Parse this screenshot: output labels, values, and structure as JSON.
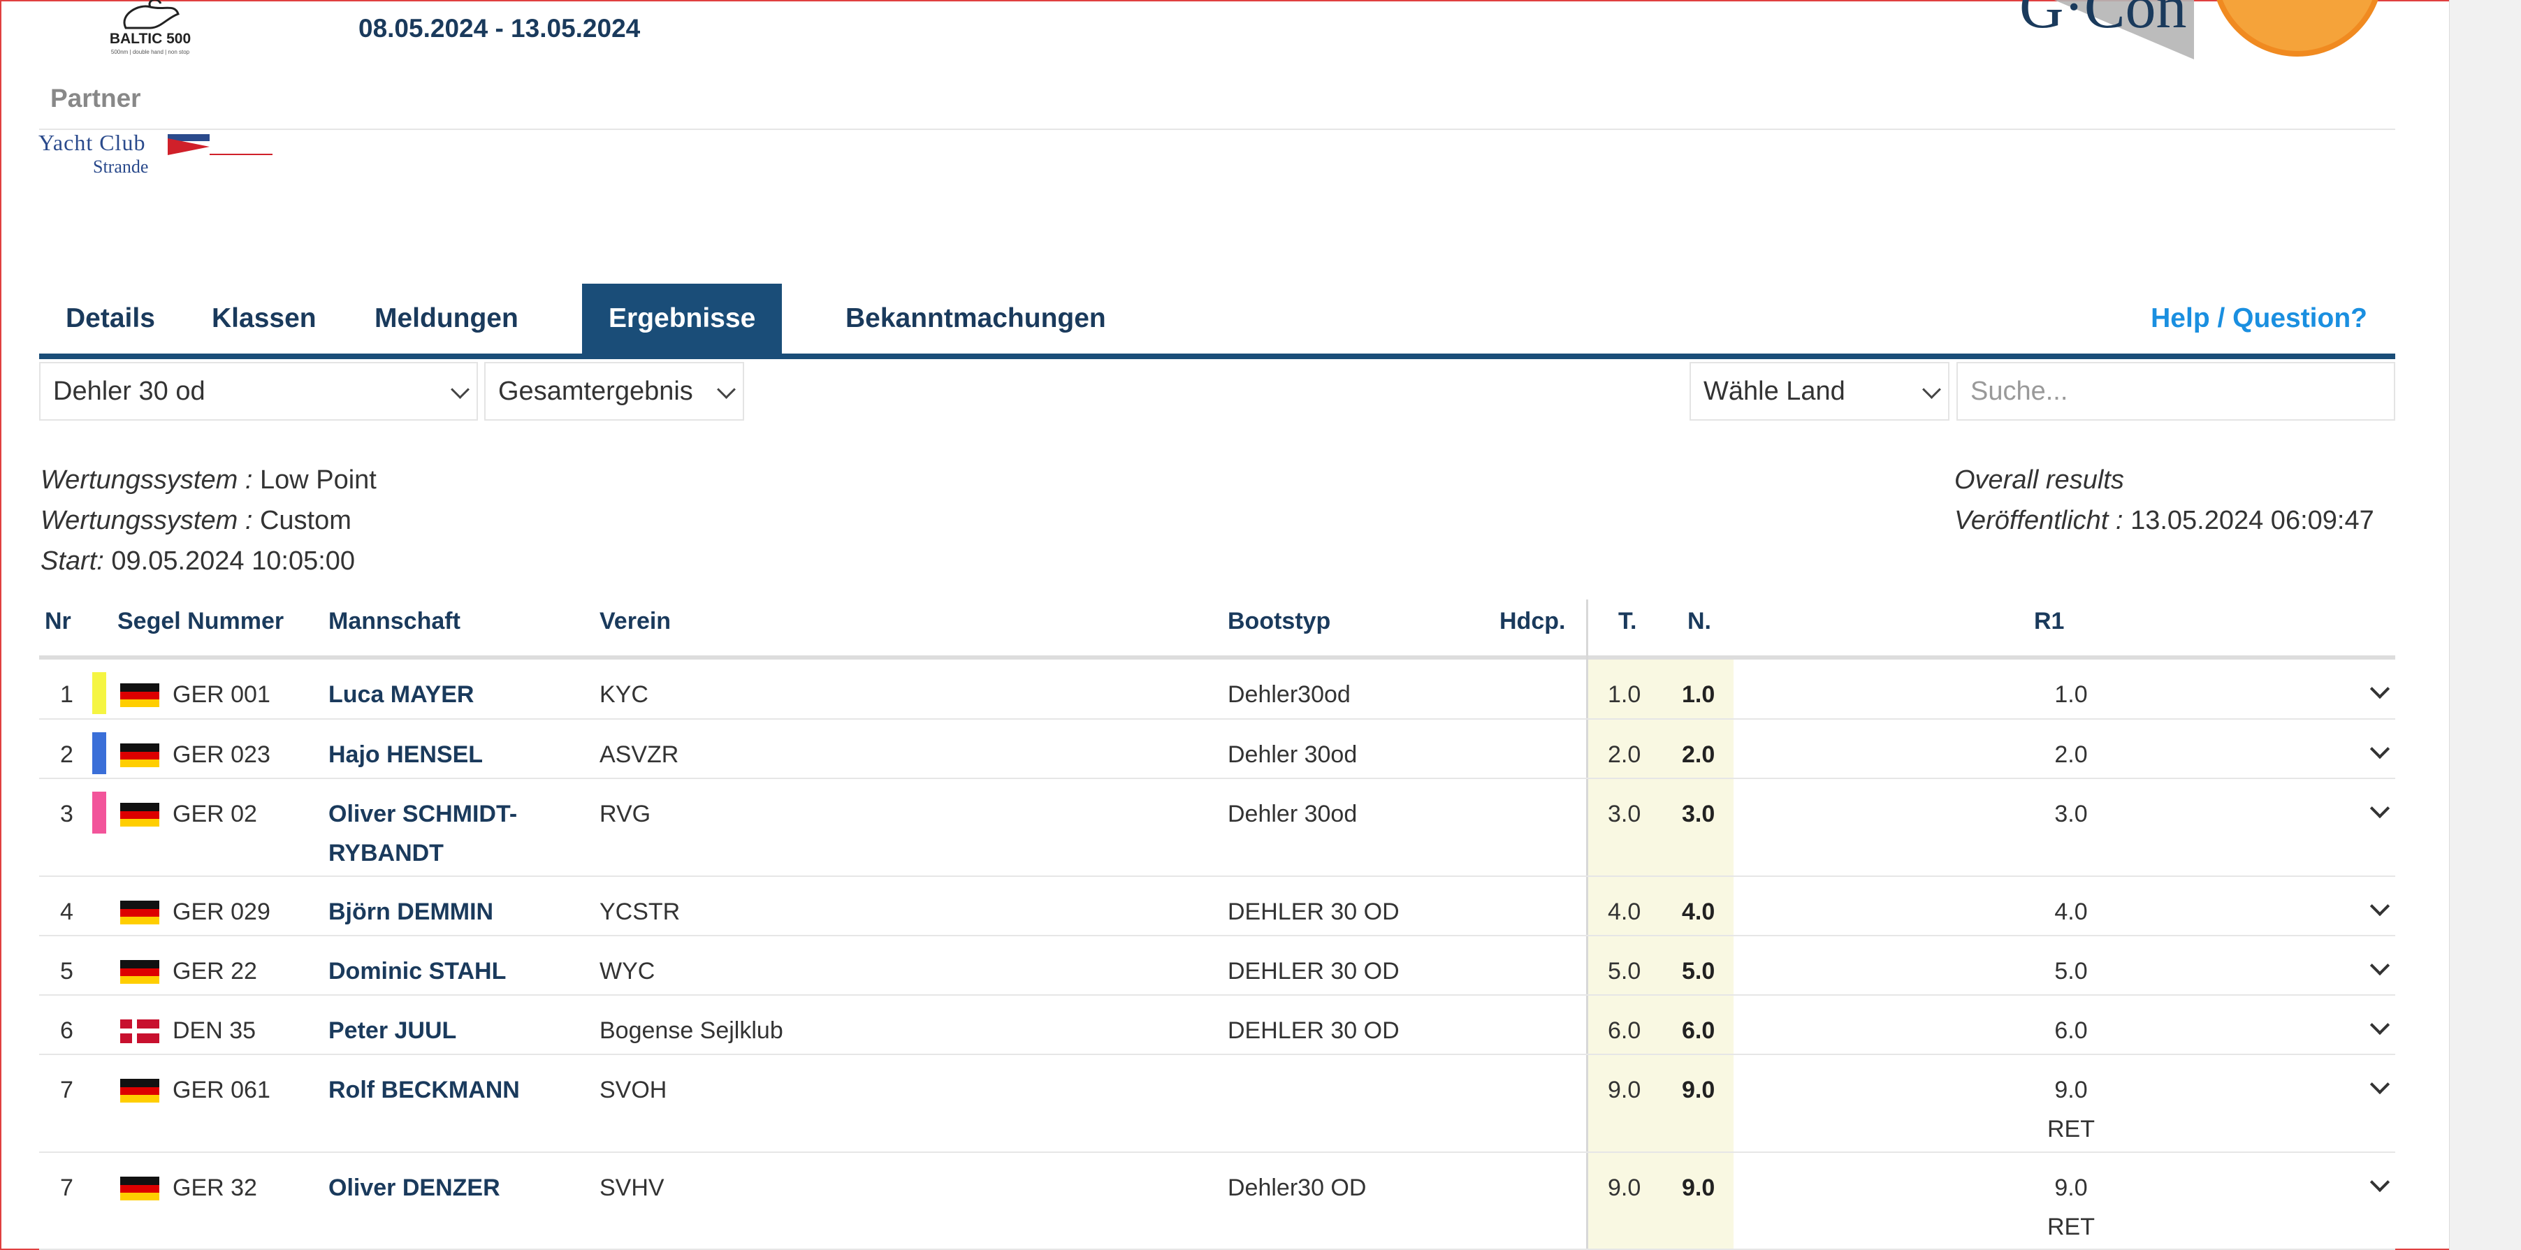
{
  "header": {
    "logo_text": "BALTIC 500",
    "logo_subtext": "500nm | double hand | non stop",
    "dates": "08.05.2024 - 13.05.2024",
    "sponsor_text": "G·Con"
  },
  "partner": {
    "label": "Partner",
    "logo_line1": "Yacht Club",
    "logo_line2": "Strande"
  },
  "tabs": [
    {
      "label": "Details",
      "active": false
    },
    {
      "label": "Klassen",
      "active": false
    },
    {
      "label": "Meldungen",
      "active": false
    },
    {
      "label": "Ergebnisse",
      "active": true
    },
    {
      "label": "Bekanntmachungen",
      "active": false
    }
  ],
  "help_label": "Help / Question?",
  "filters": {
    "class_select": "Dehler 30 od",
    "result_select": "Gesamtergebnis",
    "country_select": "Wähle Land",
    "search_placeholder": "Suche..."
  },
  "info": {
    "scoring1_label": "Wertungssystem :",
    "scoring1_value": "Low Point",
    "scoring2_label": "Wertungssystem :",
    "scoring2_value": "Custom",
    "start_label": "Start:",
    "start_value": "09.05.2024 10:05:00",
    "overall": "Overall results",
    "published_label": "Veröffentlicht :",
    "published_value": "13.05.2024 06:09:47"
  },
  "table": {
    "headers": {
      "nr": "Nr",
      "sail": "Segel Nummer",
      "crew": "Mannschaft",
      "club": "Verein",
      "boat": "Bootstyp",
      "hdcp": "Hdcp.",
      "t": "T.",
      "n": "N.",
      "r1": "R1"
    },
    "rows": [
      {
        "nr": "1",
        "color": "#f5f542",
        "flag": "GER",
        "sail": "GER 001",
        "crew1": "Luca MAYER",
        "crew2": "",
        "club": "KYC",
        "boat": "Dehler30od",
        "t": "1.0",
        "n": "1.0",
        "r1": "1.0",
        "r1_note": ""
      },
      {
        "nr": "2",
        "color": "#3a6fd8",
        "flag": "GER",
        "sail": "GER 023",
        "crew1": "Hajo HENSEL",
        "crew2": "",
        "club": "ASVZR",
        "boat": "Dehler 30od",
        "t": "2.0",
        "n": "2.0",
        "r1": "2.0",
        "r1_note": ""
      },
      {
        "nr": "3",
        "color": "#f2549a",
        "flag": "GER",
        "sail": "GER 02",
        "crew1": "Oliver SCHMIDT-",
        "crew2": "RYBANDT",
        "club": "RVG",
        "boat": "Dehler 30od",
        "t": "3.0",
        "n": "3.0",
        "r1": "3.0",
        "r1_note": ""
      },
      {
        "nr": "4",
        "color": "",
        "flag": "GER",
        "sail": "GER 029",
        "crew1": "Björn DEMMIN",
        "crew2": "",
        "club": "YCSTR",
        "boat": "DEHLER 30 OD",
        "t": "4.0",
        "n": "4.0",
        "r1": "4.0",
        "r1_note": ""
      },
      {
        "nr": "5",
        "color": "",
        "flag": "GER",
        "sail": "GER 22",
        "crew1": "Dominic STAHL",
        "crew2": "",
        "club": "WYC",
        "boat": "DEHLER 30 OD",
        "t": "5.0",
        "n": "5.0",
        "r1": "5.0",
        "r1_note": ""
      },
      {
        "nr": "6",
        "color": "",
        "flag": "DEN",
        "sail": "DEN 35",
        "crew1": "Peter JUUL",
        "crew2": "",
        "club": "Bogense Sejlklub",
        "boat": "DEHLER 30 OD",
        "t": "6.0",
        "n": "6.0",
        "r1": "6.0",
        "r1_note": ""
      },
      {
        "nr": "7",
        "color": "",
        "flag": "GER",
        "sail": "GER 061",
        "crew1": "Rolf BECKMANN",
        "crew2": "",
        "club": "SVOH",
        "boat": "",
        "t": "9.0",
        "n": "9.0",
        "r1": "9.0",
        "r1_note": "RET"
      },
      {
        "nr": "7",
        "color": "",
        "flag": "GER",
        "sail": "GER 32",
        "crew1": "Oliver DENZER",
        "crew2": "",
        "club": "SVHV",
        "boat": "Dehler30 OD",
        "t": "9.0",
        "n": "9.0",
        "r1": "9.0",
        "r1_note": "RET"
      }
    ]
  }
}
